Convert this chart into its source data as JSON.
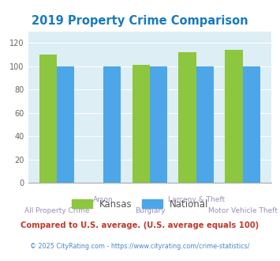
{
  "title": "2019 Property Crime Comparison",
  "title_color": "#1a7abf",
  "categories": [
    "All Property Crime",
    "Arson",
    "Burglary",
    "Larceny & Theft",
    "Motor Vehicle Theft"
  ],
  "kansas_values": [
    110,
    0,
    101,
    112,
    114
  ],
  "national_values": [
    100,
    100,
    100,
    100,
    100
  ],
  "kansas_color": "#8dc63f",
  "national_color": "#4da6e8",
  "background_color": "#ddeef4",
  "ylim": [
    0,
    130
  ],
  "yticks": [
    0,
    20,
    40,
    60,
    80,
    100,
    120
  ],
  "legend_labels": [
    "Kansas",
    "National"
  ],
  "footnote1": "Compared to U.S. average. (U.S. average equals 100)",
  "footnote1_color": "#c0392b",
  "footnote2": "© 2025 CityRating.com - https://www.cityrating.com/crime-statistics/",
  "footnote2_color": "#4a86c8",
  "bar_width": 0.38,
  "xlabels_top": [
    "Arson",
    "Larceny & Theft"
  ],
  "xlabels_top_idx": [
    1,
    3
  ],
  "xlabels_bottom": [
    "All Property Crime",
    "Burglary",
    "Motor Vehicle Theft"
  ],
  "xlabels_bottom_idx": [
    0,
    2,
    4
  ],
  "xlabel_color": "#9b8fba"
}
